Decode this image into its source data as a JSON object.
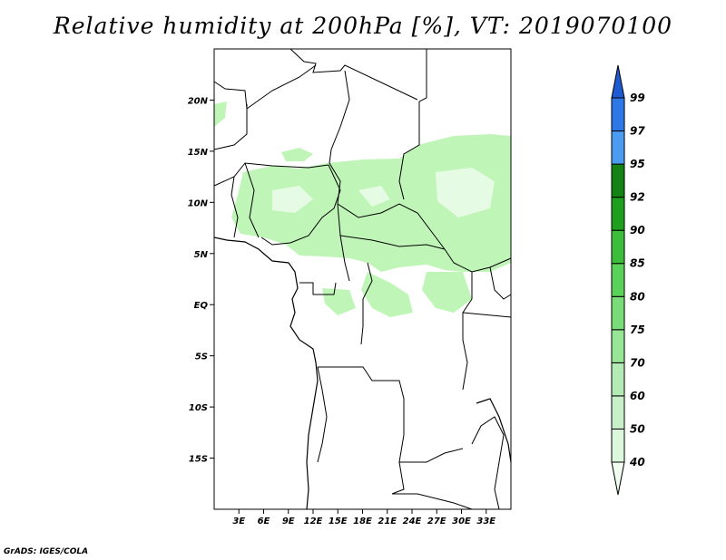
{
  "title": "Relative humidity at 200hPa [%], VT: 2019070100",
  "credit": "GrADS: IGES/COLA",
  "map": {
    "lon_range": [
      0,
      36
    ],
    "lat_range": [
      -20,
      25
    ],
    "lat_ticks": [
      {
        "value": 20,
        "label": "20N"
      },
      {
        "value": 15,
        "label": "15N"
      },
      {
        "value": 10,
        "label": "10N"
      },
      {
        "value": 5,
        "label": "5N"
      },
      {
        "value": 0,
        "label": "EQ"
      },
      {
        "value": -5,
        "label": "5S"
      },
      {
        "value": -10,
        "label": "10S"
      },
      {
        "value": -15,
        "label": "15S"
      }
    ],
    "lon_ticks": [
      {
        "value": 3,
        "label": "3E"
      },
      {
        "value": 6,
        "label": "6E"
      },
      {
        "value": 9,
        "label": "9E"
      },
      {
        "value": 12,
        "label": "12E"
      },
      {
        "value": 15,
        "label": "15E"
      },
      {
        "value": 18,
        "label": "18E"
      },
      {
        "value": 21,
        "label": "21E"
      },
      {
        "value": 24,
        "label": "24E"
      },
      {
        "value": 27,
        "label": "27E"
      },
      {
        "value": 30,
        "label": "30E"
      },
      {
        "value": 33,
        "label": "33E"
      }
    ]
  },
  "colorbar": {
    "levels": [
      "40",
      "50",
      "60",
      "70",
      "75",
      "80",
      "85",
      "90",
      "92",
      "95",
      "97",
      "99"
    ],
    "colors": [
      "#f0fff0",
      "#dcf8dc",
      "#c8f0c8",
      "#b4ebb4",
      "#96e696",
      "#78dc78",
      "#5ad25a",
      "#3cbe3c",
      "#1ea01e",
      "#148214",
      "#4b9bf0",
      "#2d78e6",
      "#1e5ad2"
    ]
  },
  "colors": {
    "land_border": "#000000",
    "background": "#ffffff"
  }
}
